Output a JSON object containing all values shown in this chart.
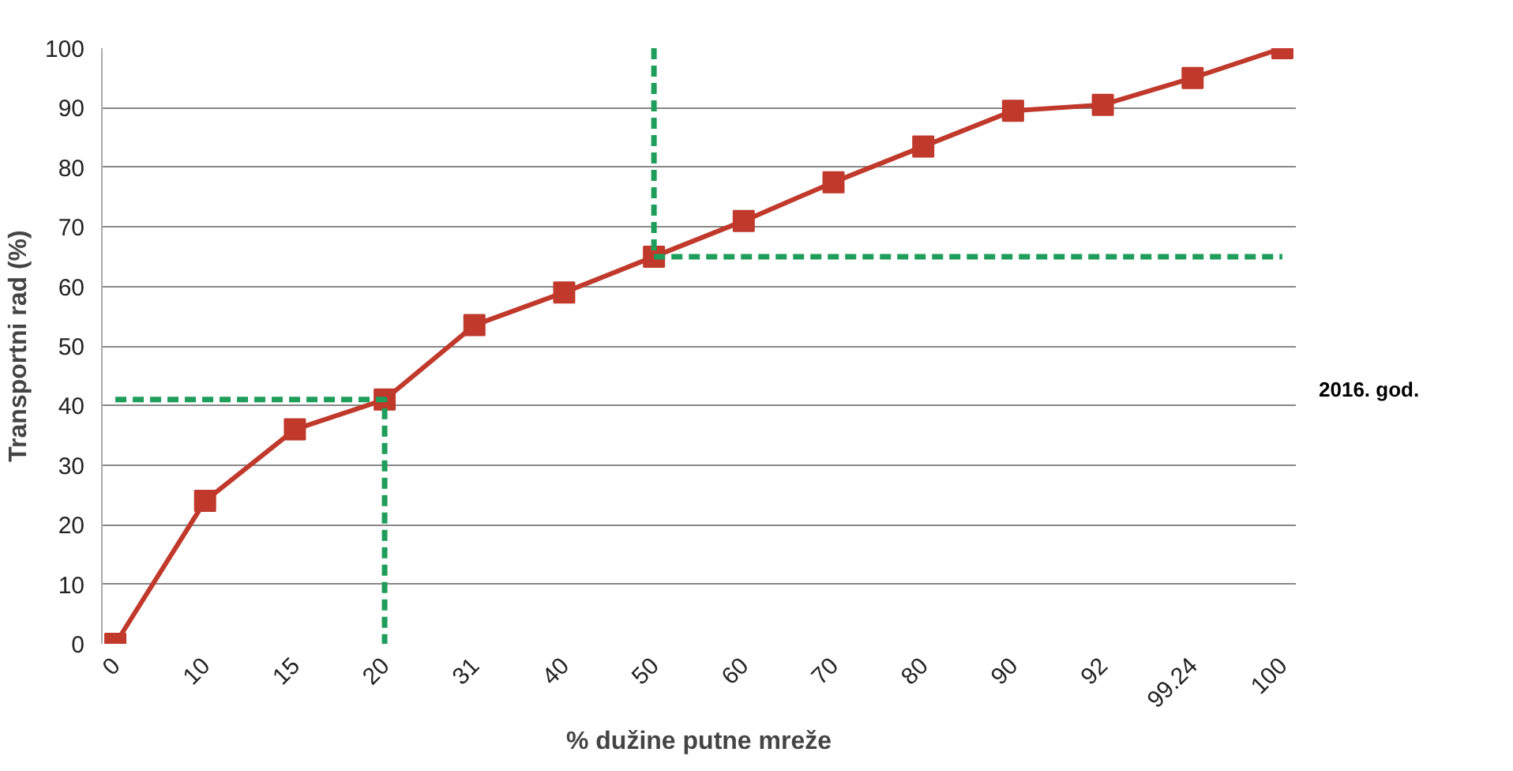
{
  "chart_data": {
    "type": "line",
    "xlabel": "% dužine putne mreže",
    "ylabel": "Transportni rad (%)",
    "categories": [
      "0",
      "10",
      "15",
      "20",
      "31",
      "40",
      "50",
      "60",
      "70",
      "80",
      "90",
      "92",
      "99.24",
      "100"
    ],
    "series": [
      {
        "color": "#c0392b",
        "values": [
          0,
          24,
          36,
          41,
          53.5,
          59,
          65,
          71,
          77.5,
          83.5,
          89.5,
          90.5,
          95,
          100
        ],
        "marker": "square",
        "line_style": "solid"
      },
      {
        "type": "line",
        "color": "#1e9e5a",
        "x": [
          "0",
          "20",
          "20"
        ],
        "values": [
          41,
          41,
          0
        ],
        "marker": "none",
        "line_style": "dashed"
      },
      {
        "type": "line",
        "color": "#1e9e5a",
        "x": [
          "50",
          "50",
          "100"
        ],
        "values": [
          100,
          65,
          65
        ],
        "marker": "none",
        "line_style": "dashed"
      }
    ],
    "annotations": [
      "2016. god."
    ],
    "ylim": [
      0,
      100
    ],
    "yticks": [
      0,
      10,
      20,
      30,
      40,
      50,
      60,
      70,
      80,
      90,
      100
    ],
    "grid": "y"
  }
}
